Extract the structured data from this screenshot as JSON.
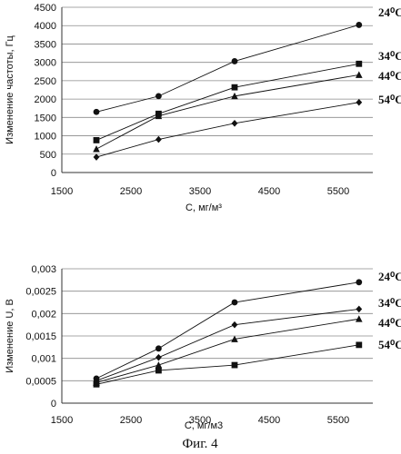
{
  "chart_data": [
    {
      "type": "line",
      "xlabel": "С, мг/м³",
      "ylabel": "Изменение частоты, Гц",
      "xlim": [
        1500,
        6000
      ],
      "ylim": [
        0,
        4500
      ],
      "x_ticks": [
        "1500",
        "2500",
        "3500",
        "4500",
        "5500"
      ],
      "y_ticks": [
        "0",
        "500",
        "1000",
        "1500",
        "2000",
        "2500",
        "3000",
        "3500",
        "4000",
        "4500"
      ],
      "grid": "horizontal",
      "series": [
        {
          "name": "24⁰C",
          "marker": "circle",
          "x": [
            2000,
            2900,
            4000,
            5800
          ],
          "y": [
            1650,
            2080,
            3030,
            4020
          ]
        },
        {
          "name": "34⁰C",
          "marker": "square",
          "x": [
            2000,
            2900,
            4000,
            5800
          ],
          "y": [
            880,
            1600,
            2320,
            2960
          ]
        },
        {
          "name": "44⁰C",
          "marker": "triangle",
          "x": [
            2000,
            2900,
            4000,
            5800
          ],
          "y": [
            640,
            1540,
            2080,
            2660
          ]
        },
        {
          "name": "54⁰C",
          "marker": "diamond",
          "x": [
            2000,
            2900,
            4000,
            5800
          ],
          "y": [
            420,
            900,
            1340,
            1910
          ]
        }
      ]
    },
    {
      "type": "line",
      "xlabel": "С, мг/м3",
      "ylabel": "Изменение U, В",
      "xlim": [
        1500,
        6000
      ],
      "ylim": [
        0,
        0.003
      ],
      "x_ticks": [
        "1500",
        "2500",
        "3500",
        "4500",
        "5500"
      ],
      "y_ticks": [
        "0",
        "0,0005",
        "0,001",
        "0,0015",
        "0,002",
        "0,0025",
        "0,003"
      ],
      "grid": "horizontal",
      "series": [
        {
          "name": "24⁰C",
          "marker": "circle",
          "x": [
            2000,
            2900,
            4000,
            5800
          ],
          "y": [
            0.00055,
            0.00122,
            0.00225,
            0.0027
          ]
        },
        {
          "name": "34⁰C",
          "marker": "diamond",
          "x": [
            2000,
            2900,
            4000,
            5800
          ],
          "y": [
            0.0005,
            0.00102,
            0.00175,
            0.0021
          ]
        },
        {
          "name": "44⁰C",
          "marker": "triangle",
          "x": [
            2000,
            2900,
            4000,
            5800
          ],
          "y": [
            0.00046,
            0.00085,
            0.00143,
            0.00188
          ]
        },
        {
          "name": "54⁰C",
          "marker": "square",
          "x": [
            2000,
            2900,
            4000,
            5800
          ],
          "y": [
            0.00042,
            0.00073,
            0.00085,
            0.0013
          ]
        }
      ]
    }
  ],
  "caption": "Фиг. 4"
}
